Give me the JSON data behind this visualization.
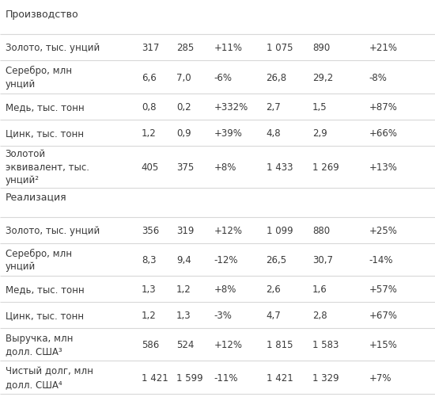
{
  "background_color": "#ffffff",
  "sections": [
    {
      "label": "Производство",
      "is_header": true
    },
    {
      "label": "Золото, тыс. унций",
      "col1": "317",
      "col2": "285",
      "col3": "+11%",
      "col4": "1 075",
      "col5": "890",
      "col6": "+21%"
    },
    {
      "label": "Серебро, млн\nунций",
      "col1": "6,6",
      "col2": "7,0",
      "col3": "-6%",
      "col4": "26,8",
      "col5": "29,2",
      "col6": "-8%"
    },
    {
      "label": "Медь, тыс. тонн",
      "col1": "0,8",
      "col2": "0,2",
      "col3": "+332%",
      "col4": "2,7",
      "col5": "1,5",
      "col6": "+87%"
    },
    {
      "label": "Цинк, тыс. тонн",
      "col1": "1,2",
      "col2": "0,9",
      "col3": "+39%",
      "col4": "4,8",
      "col5": "2,9",
      "col6": "+66%"
    },
    {
      "label": "Золотой\nэквивалент, тыс.\nунций²",
      "col1": "405",
      "col2": "375",
      "col3": "+8%",
      "col4": "1 433",
      "col5": "1 269",
      "col6": "+13%"
    },
    {
      "label": "Реализация",
      "is_header": true
    },
    {
      "label": "Золото, тыс. унций",
      "col1": "356",
      "col2": "319",
      "col3": "+12%",
      "col4": "1 099",
      "col5": "880",
      "col6": "+25%"
    },
    {
      "label": "Серебро, млн\nунций",
      "col1": "8,3",
      "col2": "9,4",
      "col3": "-12%",
      "col4": "26,5",
      "col5": "30,7",
      "col6": "-14%"
    },
    {
      "label": "Медь, тыс. тонн",
      "col1": "1,3",
      "col2": "1,2",
      "col3": "+8%",
      "col4": "2,6",
      "col5": "1,6",
      "col6": "+57%"
    },
    {
      "label": "Цинк, тыс. тонн",
      "col1": "1,2",
      "col2": "1,3",
      "col3": "-3%",
      "col4": "4,7",
      "col5": "2,8",
      "col6": "+67%"
    },
    {
      "label": "Выручка, млн\nдолл. США³",
      "col1": "586",
      "col2": "524",
      "col3": "+12%",
      "col4": "1 815",
      "col5": "1 583",
      "col6": "+15%"
    },
    {
      "label": "Чистый долг, млн\nдолл. США⁴",
      "col1": "1 421",
      "col2": "1 599",
      "col3": "-11%",
      "col4": "1 421",
      "col5": "1 329",
      "col6": "+7%"
    }
  ],
  "text_color": "#3a3a3a",
  "header_color": "#3a3a3a",
  "line_color": "#d8d8d8",
  "font_size": 8.5,
  "header_font_size": 9.0,
  "col_x": {
    "label": 0.012,
    "col1": 0.325,
    "col2": 0.405,
    "col3": 0.492,
    "col4": 0.612,
    "col5": 0.718,
    "col6": 0.848
  },
  "row_heights": {
    "header": 42,
    "single": 38,
    "double": 48,
    "triple": 62
  }
}
